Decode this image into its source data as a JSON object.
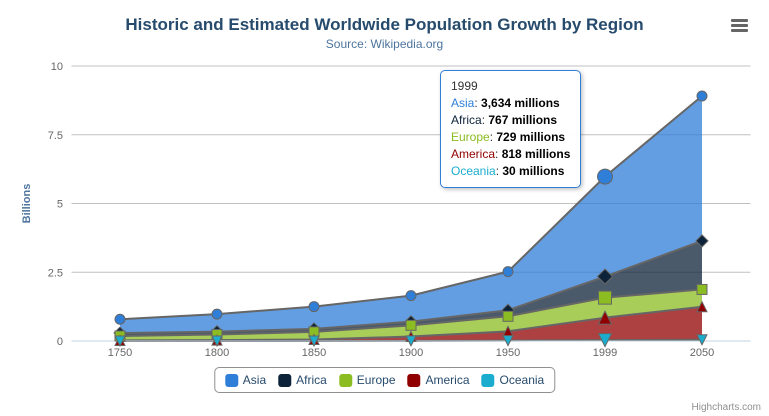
{
  "chart": {
    "title": "Historic and Estimated Worldwide Population Growth by Region",
    "subtitle": "Source: Wikipedia.org",
    "credit": "Highcharts.com"
  },
  "icons": {
    "export_menu": "hamburger-icon"
  },
  "chart_data": {
    "type": "area",
    "stacking": "normal",
    "title": "Historic and Estimated Worldwide Population Growth by Region",
    "subtitle": "Source: Wikipedia.org",
    "categories": [
      "1750",
      "1800",
      "1850",
      "1900",
      "1950",
      "1999",
      "2050"
    ],
    "series": [
      {
        "name": "Asia",
        "color": "#2f7ed8",
        "marker": "circle",
        "values_millions": [
          502,
          635,
          809,
          947,
          1402,
          3634,
          5268
        ]
      },
      {
        "name": "Africa",
        "color": "#0d233a",
        "marker": "diamond",
        "values_millions": [
          106,
          107,
          111,
          133,
          221,
          767,
          1766
        ]
      },
      {
        "name": "Europe",
        "color": "#8bbc21",
        "marker": "square",
        "values_millions": [
          163,
          203,
          276,
          408,
          547,
          729,
          628
        ]
      },
      {
        "name": "America",
        "color": "#910000",
        "marker": "triangle",
        "values_millions": [
          18,
          31,
          54,
          156,
          339,
          818,
          1201
        ]
      },
      {
        "name": "Oceania",
        "color": "#1aadce",
        "marker": "triangle-down",
        "values_millions": [
          2,
          2,
          2,
          6,
          13,
          30,
          46
        ]
      }
    ],
    "stack_order_bottom_to_top": [
      "Oceania",
      "America",
      "Europe",
      "Africa",
      "Asia"
    ],
    "unit": "millions",
    "xlabel": "",
    "ylabel": "Billions",
    "yticks": [
      0,
      2.5,
      5,
      7.5,
      10
    ],
    "ylim": [
      0,
      10
    ],
    "grid": true,
    "legend_position": "bottom",
    "line_color": "#666666",
    "hovered_category": "1999",
    "hovered_category_index": 5
  },
  "tooltip": {
    "header": "1999",
    "rows": [
      {
        "label": "Asia",
        "color": "#2f7ed8",
        "value": "3,634 millions"
      },
      {
        "label": "Africa",
        "color": "#0d233a",
        "value": "767 millions"
      },
      {
        "label": "Europe",
        "color": "#8bbc21",
        "value": "729 millions"
      },
      {
        "label": "America",
        "color": "#910000",
        "value": "818 millions"
      },
      {
        "label": "Oceania",
        "color": "#1aadce",
        "value": "30 millions"
      }
    ]
  }
}
